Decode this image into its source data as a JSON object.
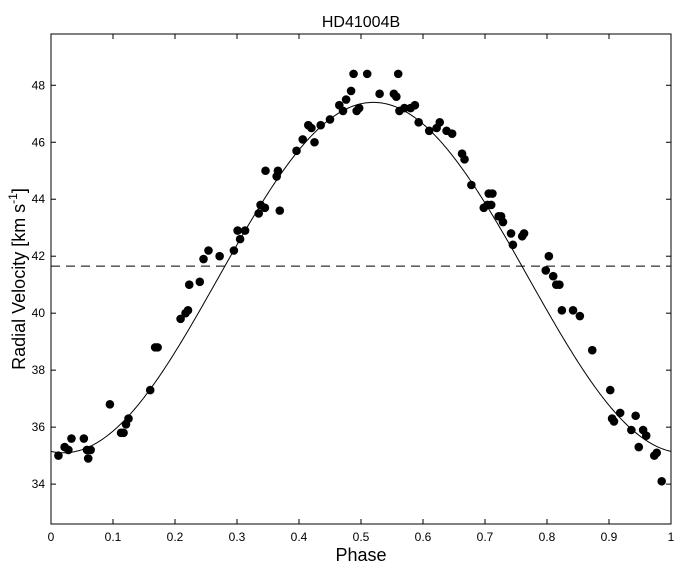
{
  "chart_data": {
    "type": "scatter",
    "title": "HD41004B",
    "xlabel": "Phase",
    "ylabel": {
      "main": "Radial Velocity [km s",
      "superscript": "-1",
      "close": "]"
    },
    "xlim": [
      0,
      1
    ],
    "ylim": [
      32.6,
      49.8
    ],
    "x_ticks": [
      0,
      0.1,
      0.2,
      0.3,
      0.4,
      0.5,
      0.6,
      0.7,
      0.8,
      0.9,
      1
    ],
    "x_tick_labels": [
      "0",
      "0.1",
      "0.2",
      "0.3",
      "0.4",
      "0.5",
      "0.6",
      "0.7",
      "0.8",
      "0.9",
      "1"
    ],
    "y_ticks": [
      34,
      36,
      38,
      40,
      42,
      44,
      46,
      48
    ],
    "y_tick_labels": [
      "34",
      "36",
      "38",
      "40",
      "42",
      "44",
      "46",
      "48"
    ],
    "grid": false,
    "colors": {
      "points": "#000000",
      "fit": "#000000",
      "reference": "#000000"
    },
    "reference_line": {
      "y": 41.65,
      "style": "dashed"
    },
    "fit_curve": {
      "type": "sinusoid",
      "mean": 41.25,
      "semi_amplitude": 6.15,
      "phase_of_minimum": 0.02
    },
    "points": [
      {
        "x": 0.012,
        "y": 35.0
      },
      {
        "x": 0.022,
        "y": 35.3
      },
      {
        "x": 0.028,
        "y": 35.2
      },
      {
        "x": 0.033,
        "y": 35.6
      },
      {
        "x": 0.053,
        "y": 35.6
      },
      {
        "x": 0.058,
        "y": 35.2
      },
      {
        "x": 0.06,
        "y": 34.9
      },
      {
        "x": 0.064,
        "y": 35.2
      },
      {
        "x": 0.095,
        "y": 36.8
      },
      {
        "x": 0.113,
        "y": 35.8
      },
      {
        "x": 0.117,
        "y": 35.8
      },
      {
        "x": 0.121,
        "y": 36.1
      },
      {
        "x": 0.125,
        "y": 36.3
      },
      {
        "x": 0.16,
        "y": 37.3
      },
      {
        "x": 0.168,
        "y": 38.8
      },
      {
        "x": 0.172,
        "y": 38.8
      },
      {
        "x": 0.209,
        "y": 39.8
      },
      {
        "x": 0.217,
        "y": 40.0
      },
      {
        "x": 0.221,
        "y": 40.1
      },
      {
        "x": 0.223,
        "y": 41.0
      },
      {
        "x": 0.24,
        "y": 41.1
      },
      {
        "x": 0.246,
        "y": 41.9
      },
      {
        "x": 0.254,
        "y": 42.2
      },
      {
        "x": 0.272,
        "y": 42.0
      },
      {
        "x": 0.295,
        "y": 42.2
      },
      {
        "x": 0.301,
        "y": 42.9
      },
      {
        "x": 0.305,
        "y": 42.6
      },
      {
        "x": 0.313,
        "y": 42.9
      },
      {
        "x": 0.335,
        "y": 43.5
      },
      {
        "x": 0.338,
        "y": 43.8
      },
      {
        "x": 0.345,
        "y": 43.7
      },
      {
        "x": 0.346,
        "y": 45.0
      },
      {
        "x": 0.364,
        "y": 44.8
      },
      {
        "x": 0.366,
        "y": 45.0
      },
      {
        "x": 0.369,
        "y": 43.6
      },
      {
        "x": 0.396,
        "y": 45.7
      },
      {
        "x": 0.406,
        "y": 46.1
      },
      {
        "x": 0.415,
        "y": 46.6
      },
      {
        "x": 0.42,
        "y": 46.5
      },
      {
        "x": 0.425,
        "y": 46.0
      },
      {
        "x": 0.435,
        "y": 46.6
      },
      {
        "x": 0.45,
        "y": 46.8
      },
      {
        "x": 0.465,
        "y": 47.3
      },
      {
        "x": 0.471,
        "y": 47.1
      },
      {
        "x": 0.476,
        "y": 47.5
      },
      {
        "x": 0.484,
        "y": 47.8
      },
      {
        "x": 0.488,
        "y": 48.4
      },
      {
        "x": 0.493,
        "y": 47.1
      },
      {
        "x": 0.497,
        "y": 47.2
      },
      {
        "x": 0.51,
        "y": 48.4
      },
      {
        "x": 0.53,
        "y": 47.7
      },
      {
        "x": 0.553,
        "y": 47.7
      },
      {
        "x": 0.557,
        "y": 47.6
      },
      {
        "x": 0.56,
        "y": 48.4
      },
      {
        "x": 0.562,
        "y": 47.1
      },
      {
        "x": 0.57,
        "y": 47.2
      },
      {
        "x": 0.58,
        "y": 47.2
      },
      {
        "x": 0.587,
        "y": 47.3
      },
      {
        "x": 0.593,
        "y": 46.7
      },
      {
        "x": 0.61,
        "y": 46.4
      },
      {
        "x": 0.622,
        "y": 46.5
      },
      {
        "x": 0.627,
        "y": 46.7
      },
      {
        "x": 0.638,
        "y": 46.4
      },
      {
        "x": 0.647,
        "y": 46.3
      },
      {
        "x": 0.663,
        "y": 45.6
      },
      {
        "x": 0.667,
        "y": 45.4
      },
      {
        "x": 0.678,
        "y": 44.5
      },
      {
        "x": 0.698,
        "y": 43.7
      },
      {
        "x": 0.704,
        "y": 43.8
      },
      {
        "x": 0.706,
        "y": 44.2
      },
      {
        "x": 0.71,
        "y": 43.8
      },
      {
        "x": 0.712,
        "y": 44.2
      },
      {
        "x": 0.722,
        "y": 43.4
      },
      {
        "x": 0.726,
        "y": 43.4
      },
      {
        "x": 0.729,
        "y": 43.2
      },
      {
        "x": 0.742,
        "y": 42.8
      },
      {
        "x": 0.745,
        "y": 42.4
      },
      {
        "x": 0.76,
        "y": 42.7
      },
      {
        "x": 0.763,
        "y": 42.8
      },
      {
        "x": 0.798,
        "y": 41.5
      },
      {
        "x": 0.803,
        "y": 42.0
      },
      {
        "x": 0.81,
        "y": 41.3
      },
      {
        "x": 0.815,
        "y": 41.0
      },
      {
        "x": 0.82,
        "y": 41.0
      },
      {
        "x": 0.824,
        "y": 40.1
      },
      {
        "x": 0.842,
        "y": 40.1
      },
      {
        "x": 0.853,
        "y": 39.9
      },
      {
        "x": 0.873,
        "y": 38.7
      },
      {
        "x": 0.902,
        "y": 37.3
      },
      {
        "x": 0.905,
        "y": 36.3
      },
      {
        "x": 0.908,
        "y": 36.2
      },
      {
        "x": 0.918,
        "y": 36.5
      },
      {
        "x": 0.936,
        "y": 35.9
      },
      {
        "x": 0.943,
        "y": 36.4
      },
      {
        "x": 0.948,
        "y": 35.3
      },
      {
        "x": 0.955,
        "y": 35.9
      },
      {
        "x": 0.96,
        "y": 35.7
      },
      {
        "x": 0.973,
        "y": 35.0
      },
      {
        "x": 0.977,
        "y": 35.1
      },
      {
        "x": 0.985,
        "y": 34.1
      }
    ]
  }
}
